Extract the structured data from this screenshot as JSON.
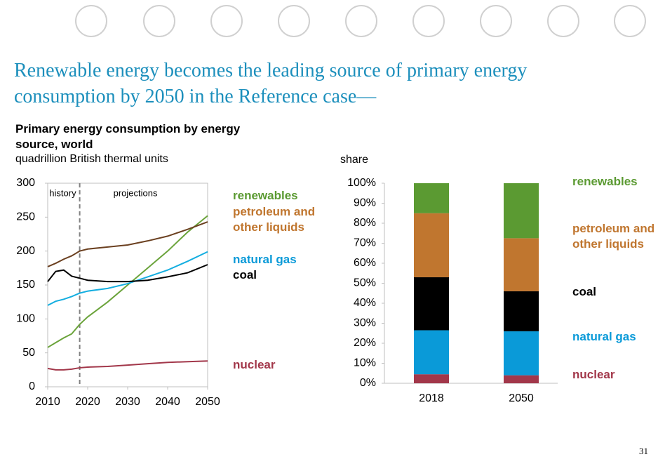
{
  "title": "Renewable energy becomes the leading source of primary energy consumption by 2050 in the Reference case—",
  "page_number": "31",
  "chart_data": [
    {
      "type": "line",
      "title": "Primary energy consumption by energy source, world",
      "subtitle": "quadrillion British thermal units",
      "x": [
        2010,
        2012,
        2014,
        2016,
        2018,
        2020,
        2025,
        2030,
        2035,
        2040,
        2045,
        2050
      ],
      "xlim": [
        2010,
        2050
      ],
      "xticks": [
        2010,
        2020,
        2030,
        2040,
        2050
      ],
      "ylim": [
        0,
        300
      ],
      "yticks": [
        0,
        50,
        100,
        150,
        200,
        250,
        300
      ],
      "divider": 2018,
      "annotations": [
        "history",
        "projections"
      ],
      "series": [
        {
          "name": "renewables",
          "color": "#6aa33a",
          "label_color": "#5b9a32",
          "values": [
            58,
            65,
            72,
            78,
            92,
            103,
            125,
            150,
            175,
            200,
            228,
            252
          ]
        },
        {
          "name": "petroleum and other liquids",
          "color": "#6b4020",
          "label_color": "#c0762f",
          "values": [
            177,
            182,
            188,
            193,
            200,
            203,
            206,
            209,
            215,
            222,
            232,
            243
          ]
        },
        {
          "name": "natural gas",
          "color": "#14aee0",
          "label_color": "#0a9ad8",
          "values": [
            120,
            126,
            129,
            133,
            138,
            141,
            145,
            152,
            162,
            172,
            185,
            199
          ]
        },
        {
          "name": "coal",
          "color": "#000000",
          "label_color": "#000000",
          "values": [
            155,
            170,
            172,
            163,
            160,
            157,
            155,
            155,
            157,
            162,
            168,
            180
          ]
        },
        {
          "name": "nuclear",
          "color": "#a2374a",
          "label_color": "#a2374a",
          "values": [
            27,
            25,
            25,
            26,
            28,
            29,
            30,
            32,
            34,
            36,
            37,
            38
          ]
        }
      ]
    },
    {
      "type": "stacked_bar",
      "y_label": "share",
      "categories": [
        "2018",
        "2050"
      ],
      "ylim": [
        0,
        100
      ],
      "yticks": [
        {
          "value": 0,
          "label": "0%"
        },
        {
          "value": 10,
          "label": "10%"
        },
        {
          "value": 20,
          "label": "20%"
        },
        {
          "value": 30,
          "label": "30%"
        },
        {
          "value": 40,
          "label": "40%"
        },
        {
          "value": 50,
          "label": "50%"
        },
        {
          "value": 60,
          "label": "60%"
        },
        {
          "value": 70,
          "label": "70%"
        },
        {
          "value": 80,
          "label": "80%"
        },
        {
          "value": 90,
          "label": "90%"
        },
        {
          "value": 100,
          "label": "100%"
        }
      ],
      "series": [
        {
          "name": "nuclear",
          "color": "#a2374a",
          "values": [
            4.5,
            4
          ]
        },
        {
          "name": "natural gas",
          "color": "#0a9ad8",
          "values": [
            22,
            22
          ]
        },
        {
          "name": "coal",
          "color": "#000000",
          "values": [
            26.5,
            20
          ]
        },
        {
          "name": "petroleum and other liquids",
          "color": "#c0762f",
          "values": [
            32,
            26.5
          ]
        },
        {
          "name": "renewables",
          "color": "#5b9a32",
          "values": [
            15,
            27.5
          ]
        }
      ]
    }
  ]
}
